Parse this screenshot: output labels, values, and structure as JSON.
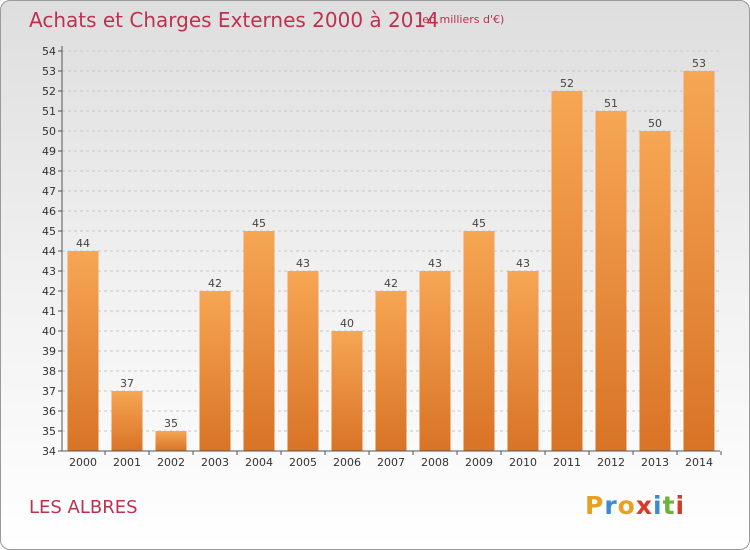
{
  "header": {
    "title": "Achats et Charges Externes 2000 à 2014",
    "subtitle": "(en milliers d'€)"
  },
  "footer": {
    "commune": "LES ALBRES",
    "logo_letters": [
      "P",
      "r",
      "o",
      "x",
      "i",
      "t",
      "i"
    ],
    "logo_colors": [
      "#e8a020",
      "#3a8cd0",
      "#e8a020",
      "#d83a2a",
      "#3a8cd0",
      "#6cb33e",
      "#d83a2a"
    ]
  },
  "colors": {
    "title": "#c0304f",
    "bar_light": "#f6a654",
    "bar_dark": "#d97326",
    "grid": "#c8c8c8"
  },
  "chart_data": {
    "type": "bar",
    "title": "Achats et Charges Externes 2000 à 2014",
    "subtitle": "(en milliers d'€)",
    "xlabel": "",
    "ylabel": "",
    "categories": [
      "2000",
      "2001",
      "2002",
      "2003",
      "2004",
      "2005",
      "2006",
      "2007",
      "2008",
      "2009",
      "2010",
      "2011",
      "2012",
      "2013",
      "2014"
    ],
    "values": [
      44,
      37,
      35,
      42,
      45,
      43,
      40,
      42,
      43,
      45,
      43,
      52,
      51,
      50,
      53
    ],
    "ylim": [
      34,
      54
    ],
    "yticks": [
      34,
      35,
      36,
      37,
      38,
      39,
      40,
      41,
      42,
      43,
      44,
      45,
      46,
      47,
      48,
      49,
      50,
      51,
      52,
      53,
      54
    ],
    "grid": true,
    "legend": "none"
  }
}
